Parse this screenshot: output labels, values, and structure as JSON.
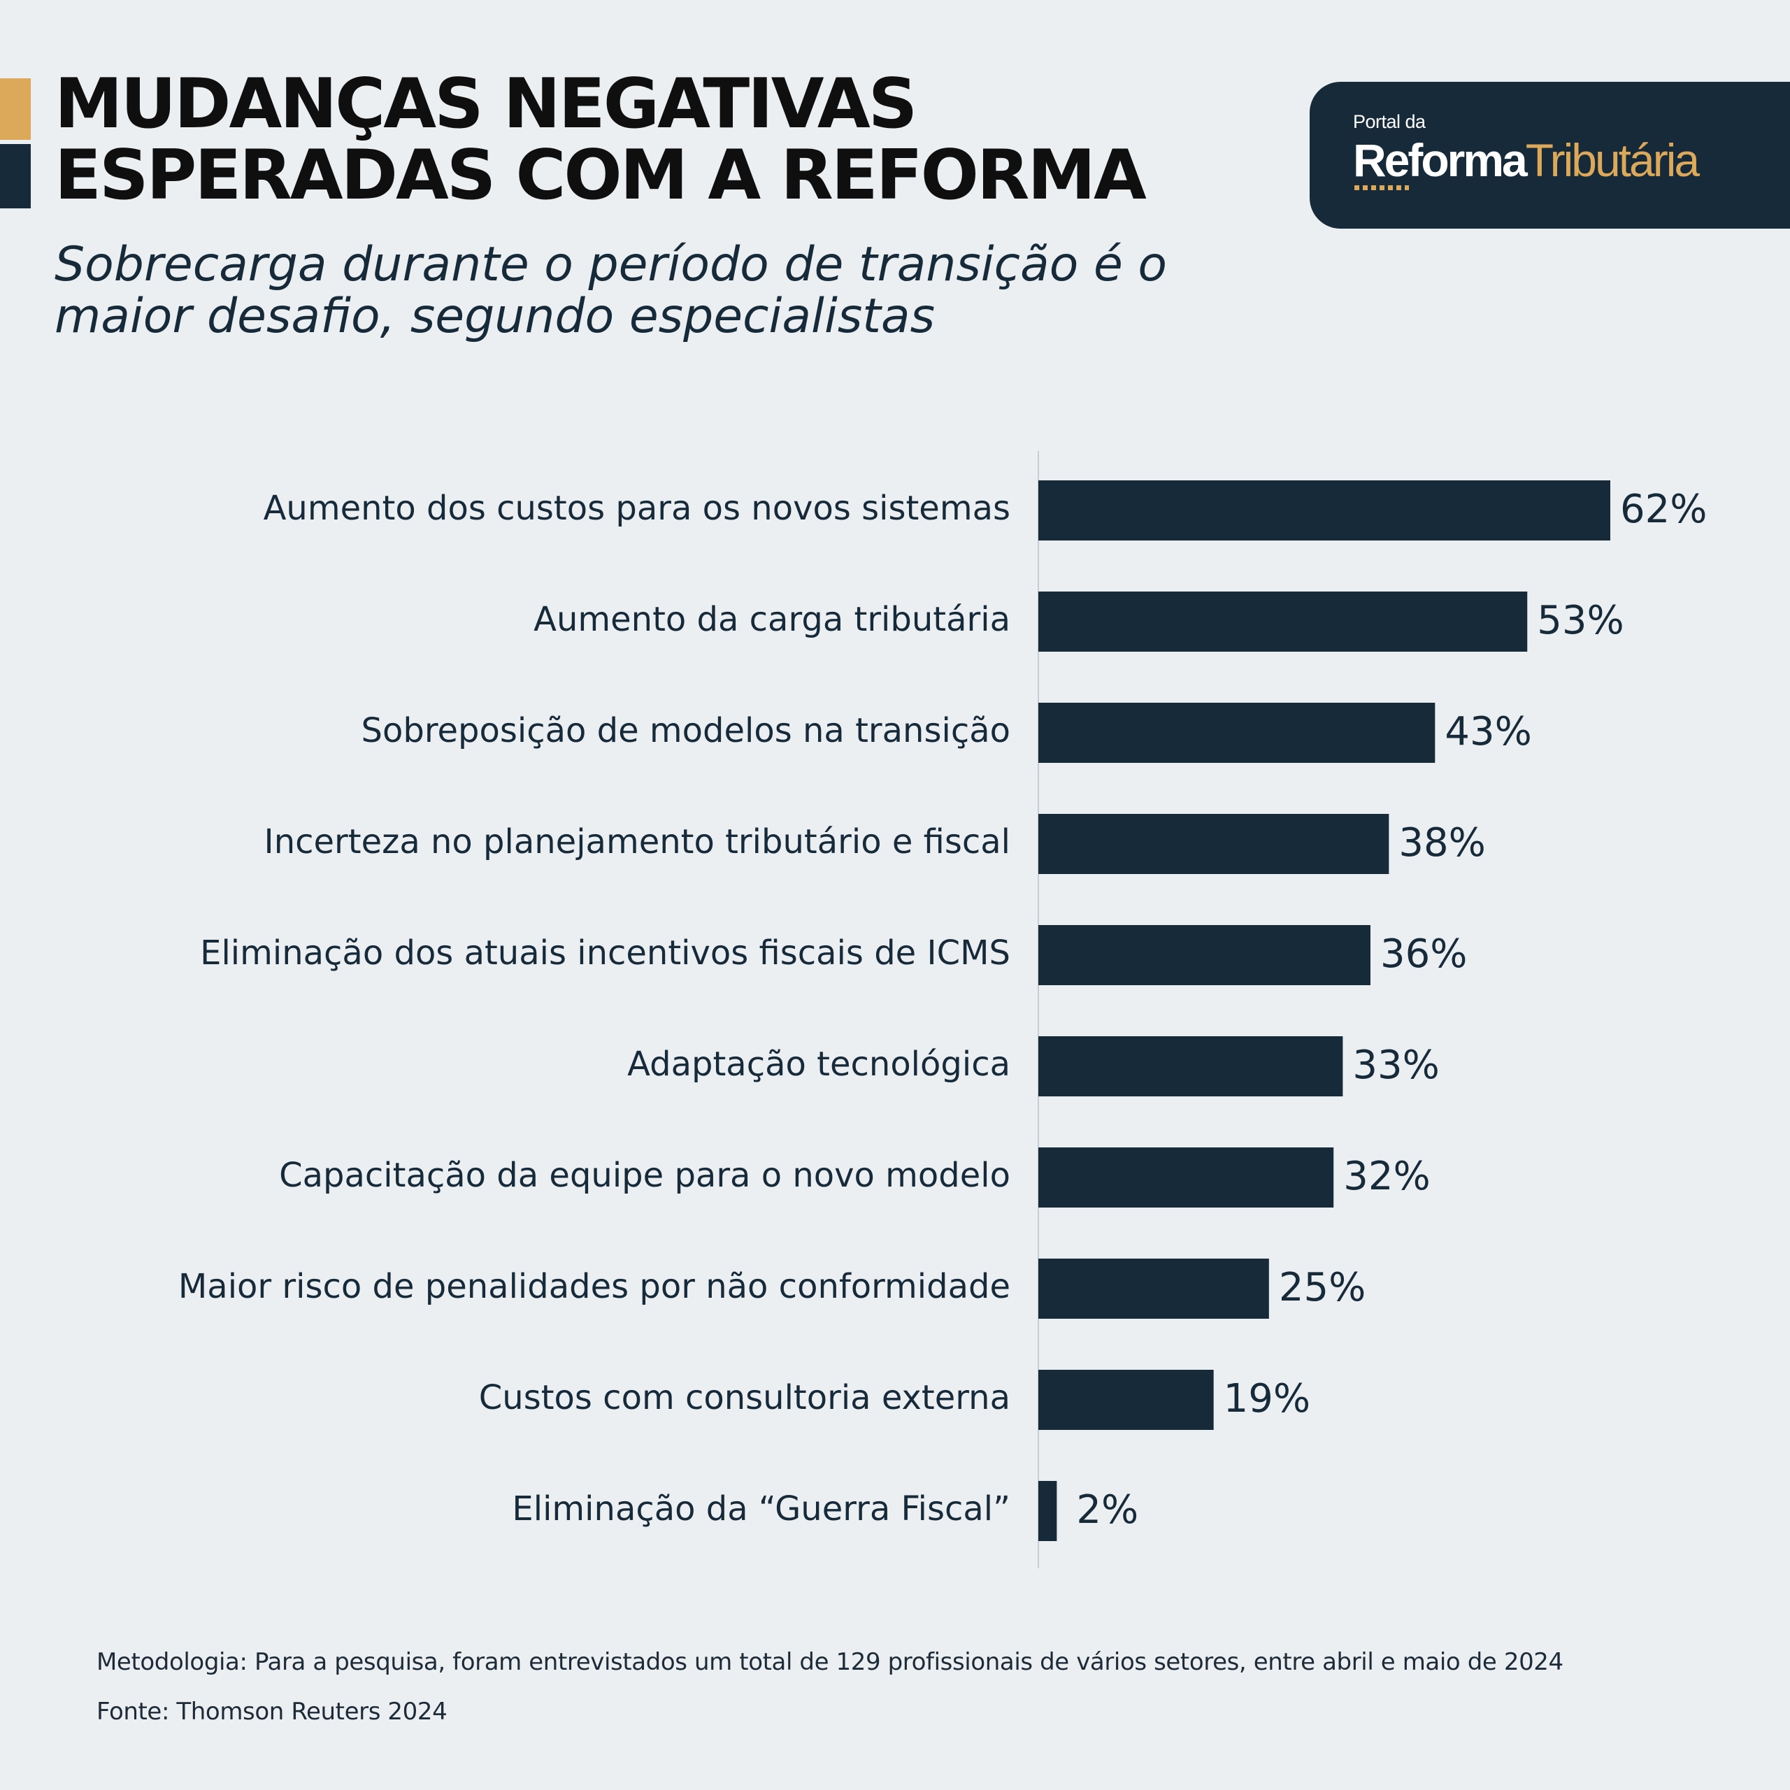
{
  "header": {
    "title_line1": "MUDANÇAS NEGATIVAS",
    "title_line2": "ESPERADAS COM A REFORMA",
    "subtitle_line1": "Sobrecarga durante o período de transição é o",
    "subtitle_line2": "maior desafio, segundo especialistas"
  },
  "logo": {
    "small": "Portal da",
    "word1": "Reforma",
    "word2": "Tributária"
  },
  "colors": {
    "background": "#eceff2",
    "navy": "#172a3a",
    "gold": "#dca85a",
    "axis": "#c9cdd2"
  },
  "chart_data": {
    "type": "bar",
    "orientation": "horizontal",
    "title": "",
    "xlabel": "",
    "ylabel": "",
    "xlim": [
      0,
      62
    ],
    "grid": false,
    "categories": [
      "Aumento dos custos para os novos sistemas",
      "Aumento da carga tributária",
      "Sobreposição de modelos na transição",
      "Incerteza no planejamento tributário e fiscal",
      "Eliminação dos atuais incentivos fiscais de ICMS",
      "Adaptação tecnológica",
      "Capacitação da equipe para o novo modelo",
      "Maior risco de penalidades por não conformidade",
      "Custos com consultoria externa",
      "Eliminação da “Guerra Fiscal”"
    ],
    "values": [
      62,
      53,
      43,
      38,
      36,
      33,
      32,
      25,
      19,
      2
    ],
    "value_labels": [
      "62%",
      "53%",
      "43%",
      "38%",
      "36%",
      "33%",
      "32%",
      "25%",
      "19%",
      "2%"
    ]
  },
  "footer": {
    "methodology": "Metodologia: Para a pesquisa, foram entrevistados um total de 129 profissionais de vários setores, entre abril e maio de 2024",
    "source": "Fonte: Thomson Reuters 2024"
  }
}
